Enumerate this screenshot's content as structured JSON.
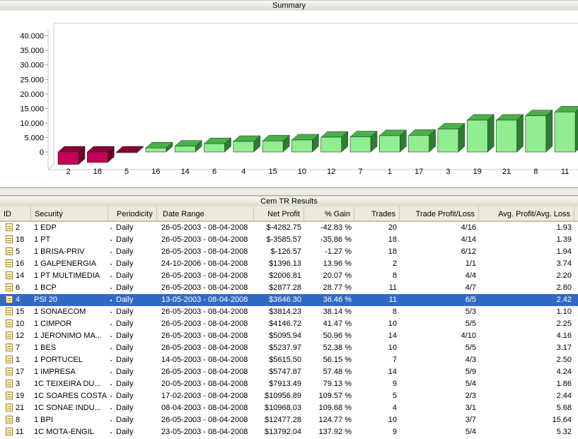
{
  "summary": {
    "title": "Summary"
  },
  "chart_data": {
    "type": "bar",
    "categories": [
      "2",
      "18",
      "5",
      "16",
      "14",
      "6",
      "4",
      "15",
      "10",
      "12",
      "7",
      "1",
      "17",
      "3",
      "19",
      "21",
      "8",
      "11"
    ],
    "values": [
      -4282.75,
      -3585.57,
      -126.57,
      1396.13,
      2006.81,
      2877.28,
      3646.3,
      3814.23,
      4146.72,
      5095.94,
      5237.97,
      5615.5,
      5747.87,
      7913.49,
      10956.89,
      10968.03,
      12477.28,
      13792.04
    ],
    "yticks": [
      "0",
      "5.000",
      "10.000",
      "15.000",
      "20.000",
      "25.000",
      "30.000",
      "35.000",
      "40.000"
    ],
    "ylim": [
      -4500,
      42000
    ],
    "colors": {
      "positive": "#90ee90",
      "negative": "#c8005a"
    }
  },
  "results": {
    "title": "Cem TR Results",
    "columns": [
      "ID",
      "Security",
      "Periodicity",
      "Date Range",
      "Net Profit",
      "% Gain",
      "Trades",
      "Trade Profit/Loss",
      "Avg. Profit/Avg. Loss"
    ],
    "rows": [
      {
        "id": "2",
        "security": "1 EDP",
        "periodicity": "Daily",
        "range": "26-05-2003 - 08-04-2008",
        "net": "$-4282.75",
        "gain": "-42.83 %",
        "trades": "20",
        "tpl": "4/16",
        "avg": "1.93"
      },
      {
        "id": "18",
        "security": "1 PT",
        "periodicity": "Daily",
        "range": "26-05-2003 - 08-04-2008",
        "net": "$-3585.57",
        "gain": "-35.86 %",
        "trades": "18",
        "tpl": "4/14",
        "avg": "1.39"
      },
      {
        "id": "5",
        "security": "1 BRISA-PRIV",
        "periodicity": "Daily",
        "range": "26-05-2003 - 08-04-2008",
        "net": "$-126.57",
        "gain": "-1.27 %",
        "trades": "18",
        "tpl": "6/12",
        "avg": "1.94"
      },
      {
        "id": "16",
        "security": "1 GALPENERGIA",
        "periodicity": "Daily",
        "range": "24-10-2006 - 08-04-2008",
        "net": "$1396.13",
        "gain": "13.96 %",
        "trades": "2",
        "tpl": "1/1",
        "avg": "3.74"
      },
      {
        "id": "14",
        "security": "1 PT MULTIMEDIA",
        "periodicity": "Daily",
        "range": "26-05-2003 - 08-04-2008",
        "net": "$2006.81",
        "gain": "20.07 %",
        "trades": "8",
        "tpl": "4/4",
        "avg": "2.20"
      },
      {
        "id": "6",
        "security": "1 BCP",
        "periodicity": "Daily",
        "range": "26-05-2003 - 08-04-2008",
        "net": "$2877.28",
        "gain": "28.77 %",
        "trades": "11",
        "tpl": "4/7",
        "avg": "2.80"
      },
      {
        "id": "4",
        "security": "PSI 20",
        "periodicity": "Daily",
        "range": "13-05-2003 - 08-04-2008",
        "net": "$3646.30",
        "gain": "36.46 %",
        "trades": "11",
        "tpl": "6/5",
        "avg": "2.42"
      },
      {
        "id": "15",
        "security": "1 SONAECOM",
        "periodicity": "Daily",
        "range": "26-05-2003 - 08-04-2008",
        "net": "$3814.23",
        "gain": "38.14 %",
        "trades": "8",
        "tpl": "5/3",
        "avg": "1.10"
      },
      {
        "id": "10",
        "security": "1 CIMPOR",
        "periodicity": "Daily",
        "range": "26-05-2003 - 08-04-2008",
        "net": "$4146.72",
        "gain": "41.47 %",
        "trades": "10",
        "tpl": "5/5",
        "avg": "2.25"
      },
      {
        "id": "12",
        "security": "1 JERONIMO MA...",
        "periodicity": "Daily",
        "range": "26-05-2003 - 08-04-2008",
        "net": "$5095.94",
        "gain": "50.96 %",
        "trades": "14",
        "tpl": "4/10",
        "avg": "4.16"
      },
      {
        "id": "7",
        "security": "1 BES",
        "periodicity": "Daily",
        "range": "26-05-2003 - 08-04-2008",
        "net": "$5237.97",
        "gain": "52.38 %",
        "trades": "10",
        "tpl": "5/5",
        "avg": "3.17"
      },
      {
        "id": "1",
        "security": "1 PORTUCEL",
        "periodicity": "Daily",
        "range": "14-05-2003 - 08-04-2008",
        "net": "$5615.50",
        "gain": "56.15 %",
        "trades": "7",
        "tpl": "4/3",
        "avg": "2.50"
      },
      {
        "id": "17",
        "security": "1 IMPRESA",
        "periodicity": "Daily",
        "range": "26-05-2003 - 08-04-2008",
        "net": "$5747.87",
        "gain": "57.48 %",
        "trades": "14",
        "tpl": "5/9",
        "avg": "4.24"
      },
      {
        "id": "3",
        "security": "1C TEIXEIRA DU...",
        "periodicity": "Daily",
        "range": "20-05-2003 - 08-04-2008",
        "net": "$7913.49",
        "gain": "79.13 %",
        "trades": "9",
        "tpl": "5/4",
        "avg": "1.86"
      },
      {
        "id": "19",
        "security": "1C SOARES COSTA",
        "periodicity": "Daily",
        "range": "17-02-2003 - 08-04-2008",
        "net": "$10956.89",
        "gain": "109.57 %",
        "trades": "5",
        "tpl": "2/3",
        "avg": "2.44"
      },
      {
        "id": "21",
        "security": "1C SONAE INDU...",
        "periodicity": "Daily",
        "range": "08-04-2003 - 08-04-2008",
        "net": "$10968.03",
        "gain": "109.68 %",
        "trades": "4",
        "tpl": "3/1",
        "avg": "5.68"
      },
      {
        "id": "8",
        "security": "1 BPI",
        "periodicity": "Daily",
        "range": "26-05-2003 - 08-04-2008",
        "net": "$12477.28",
        "gain": "124.77 %",
        "trades": "10",
        "tpl": "3/7",
        "avg": "15.64"
      },
      {
        "id": "11",
        "security": "1C MOTA-ENGIL",
        "periodicity": "Daily",
        "range": "23-05-2003 - 08-04-2008",
        "net": "$13792.04",
        "gain": "137.92 %",
        "trades": "9",
        "tpl": "5/4",
        "avg": "5.32"
      }
    ],
    "selected_index": 6
  }
}
